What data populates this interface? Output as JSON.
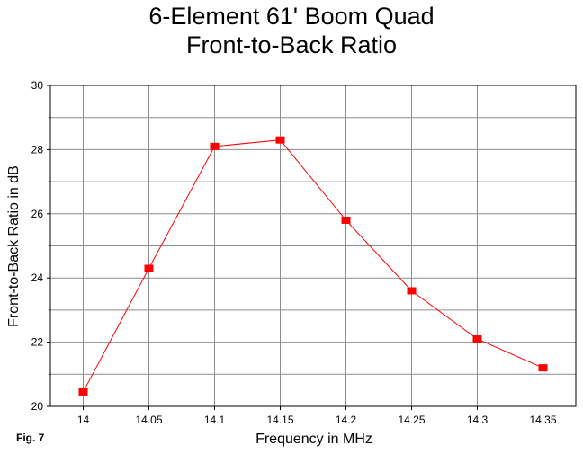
{
  "chart_data": {
    "type": "line",
    "title_lines": [
      "6-Element 61' Boom Quad",
      "Front-to-Back Ratio"
    ],
    "xlabel": "Frequency in MHz",
    "ylabel": "Front-to-Back Ratio in dB",
    "x": [
      14,
      14.05,
      14.1,
      14.15,
      14.2,
      14.25,
      14.3,
      14.35
    ],
    "x_tick_labels": [
      "14",
      "14.05",
      "14.1",
      "14.15",
      "14.2",
      "14.25",
      "14.3",
      "14.35"
    ],
    "y_ticks": [
      20,
      22,
      24,
      26,
      28,
      30
    ],
    "y_tick_labels": [
      "20",
      "22",
      "24",
      "26",
      "28",
      "30"
    ],
    "ylim": [
      20,
      30
    ],
    "xlim": [
      13.975,
      14.375
    ],
    "series": [
      {
        "values": [
          20.45,
          24.3,
          28.1,
          28.3,
          25.8,
          23.6,
          22.1,
          21.2
        ],
        "color": "#ff0000"
      }
    ],
    "grid": true,
    "legend": "none"
  },
  "figure_label": "Fig. 7"
}
